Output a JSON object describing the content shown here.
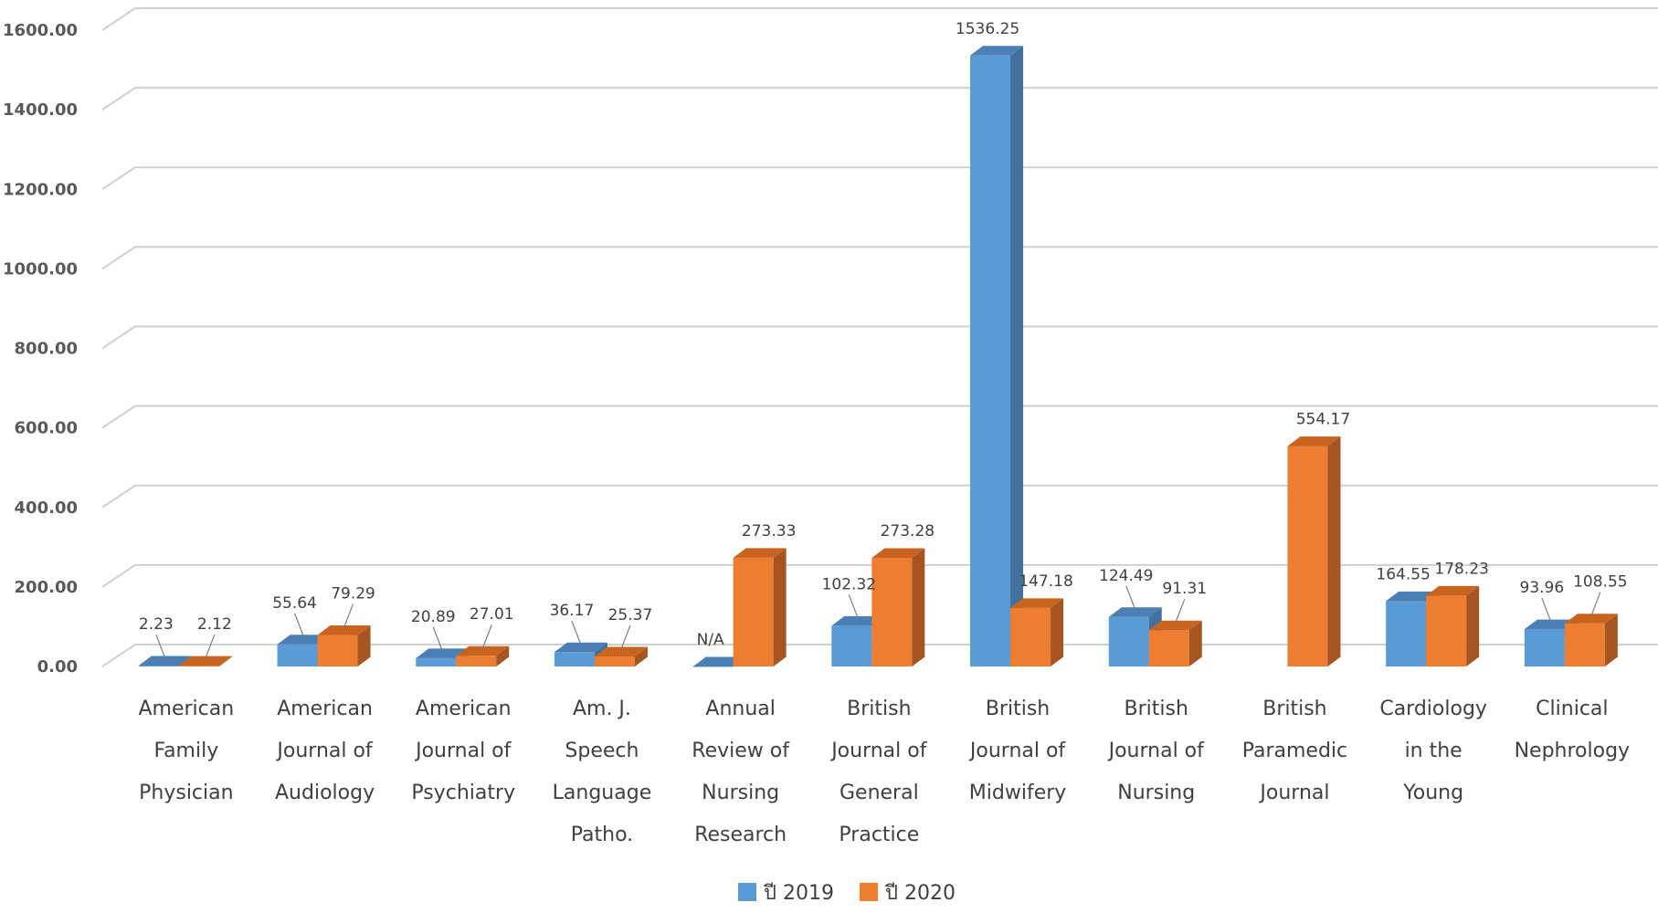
{
  "chart_data": {
    "type": "bar",
    "title": "",
    "xlabel": "",
    "ylabel": "",
    "ylim": [
      0,
      1600
    ],
    "yticks": [
      "0.00",
      "200.00",
      "400.00",
      "600.00",
      "800.00",
      "1000.00",
      "1200.00",
      "1400.00",
      "1600.00"
    ],
    "categories": [
      [
        "American",
        "Family",
        "Physician"
      ],
      [
        "American",
        "Journal of",
        "Audiology"
      ],
      [
        "American",
        "Journal of",
        "Psychiatry"
      ],
      [
        "Am. J.",
        "Speech",
        "Language",
        "Patho."
      ],
      [
        "Annual",
        "Review of",
        "Nursing",
        "Research"
      ],
      [
        "British",
        "Journal of",
        "General",
        "Practice"
      ],
      [
        "British",
        "Journal of",
        "Midwifery"
      ],
      [
        "British",
        "Journal of",
        "Nursing"
      ],
      [
        "British",
        "Paramedic",
        "Journal"
      ],
      [
        "Cardiology",
        "in the",
        "Young"
      ],
      [
        "Clinical",
        "Nephrology"
      ]
    ],
    "series": [
      {
        "name": "ปี 2019",
        "color": "#5b9bd5",
        "side_color": "#41719c",
        "top_color": "#4a7fb5",
        "values": [
          2.23,
          55.64,
          20.89,
          36.17,
          0,
          102.32,
          1536.25,
          124.49,
          null,
          164.55,
          93.96
        ],
        "labels": [
          "2.23",
          "55.64",
          "20.89",
          "36.17",
          "N/A",
          "102.32",
          "1536.25",
          "124.49",
          "",
          "164.55",
          "93.96"
        ]
      },
      {
        "name": "ปี 2020",
        "color": "#ed7d31",
        "side_color": "#a65421",
        "top_color": "#c8641f",
        "values": [
          2.12,
          79.29,
          27.01,
          25.37,
          273.33,
          273.28,
          147.18,
          91.31,
          554.17,
          178.23,
          108.55
        ],
        "labels": [
          "2.12",
          "79.29",
          "27.01",
          "25.37",
          "273.33",
          "273.28",
          "147.18",
          "91.31",
          "554.17",
          "178.23",
          "108.55"
        ]
      }
    ],
    "grid": true,
    "legend": "bottom"
  }
}
